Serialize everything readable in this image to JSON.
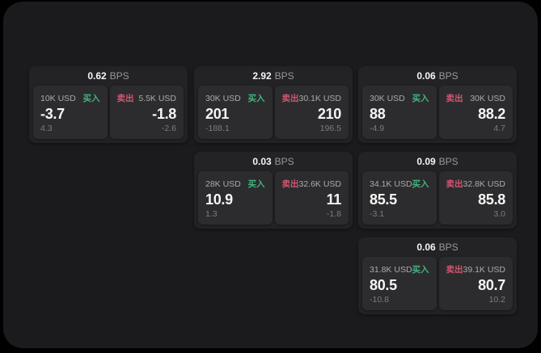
{
  "theme": {
    "background": "#000000",
    "panel": "#1b1b1d",
    "card": "#232325",
    "tile": "#2c2c2e",
    "text_primary": "#f5f5f5",
    "text_secondary": "#aaaaae",
    "text_muted": "#7c7c80",
    "buy_color": "#42b47e",
    "sell_color": "#d25672"
  },
  "cards": [
    {
      "spread": "0.62",
      "unit": "BPS",
      "buy": {
        "size": "10K USD",
        "side": "买入",
        "price": "-3.7",
        "secondary": "4.3"
      },
      "sell": {
        "side": "卖出",
        "size": "5.5K USD",
        "price": "-1.8",
        "secondary": "-2.6"
      }
    },
    {
      "spread": "2.92",
      "unit": "BPS",
      "buy": {
        "size": "30K USD",
        "side": "买入",
        "price": "201",
        "secondary": "-188.1"
      },
      "sell": {
        "side": "卖出",
        "size": "30.1K USD",
        "price": "210",
        "secondary": "196.5"
      }
    },
    {
      "spread": "0.06",
      "unit": "BPS",
      "buy": {
        "size": "30K USD",
        "side": "买入",
        "price": "88",
        "secondary": "-4.9"
      },
      "sell": {
        "side": "卖出",
        "size": "30K USD",
        "price": "88.2",
        "secondary": "4.7"
      }
    },
    {
      "spread": "0.03",
      "unit": "BPS",
      "buy": {
        "size": "28K USD",
        "side": "买入",
        "price": "10.9",
        "secondary": "1.3"
      },
      "sell": {
        "side": "卖出",
        "size": "32.6K USD",
        "price": "11",
        "secondary": "-1.8"
      }
    },
    {
      "spread": "0.09",
      "unit": "BPS",
      "buy": {
        "size": "34.1K USD",
        "side": "买入",
        "price": "85.5",
        "secondary": "-3.1"
      },
      "sell": {
        "side": "卖出",
        "size": "32.8K USD",
        "price": "85.8",
        "secondary": "3.0"
      }
    },
    {
      "spread": "0.06",
      "unit": "BPS",
      "buy": {
        "size": "31.8K USD",
        "side": "买入",
        "price": "80.5",
        "secondary": "-10.8"
      },
      "sell": {
        "side": "卖出",
        "size": "39.1K USD",
        "price": "80.7",
        "secondary": "10.2"
      }
    }
  ]
}
